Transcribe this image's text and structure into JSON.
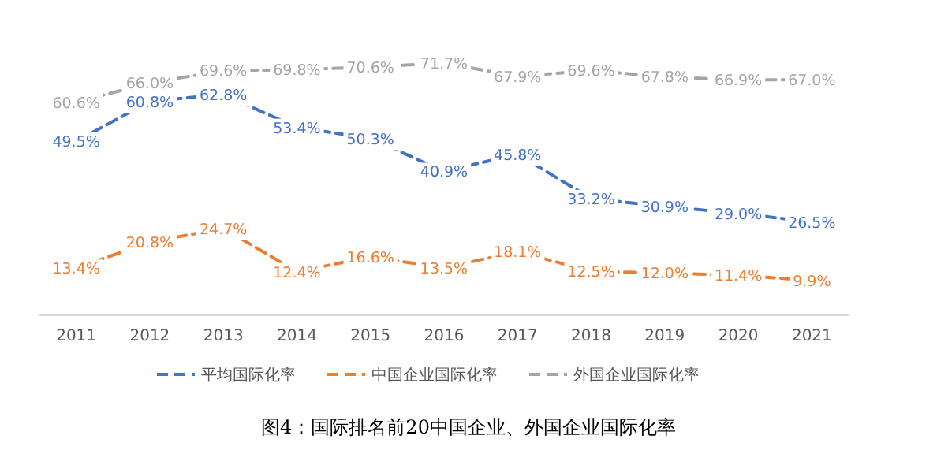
{
  "chart_data": {
    "type": "line",
    "title": "图4：国际排名前20中国企业、外国企业国际化率",
    "categories": [
      "2011",
      "2012",
      "2013",
      "2014",
      "2015",
      "2016",
      "2017",
      "2018",
      "2019",
      "2020",
      "2021"
    ],
    "series": [
      {
        "name": "平均国际化率",
        "color": "#4472c4",
        "values": [
          49.5,
          60.8,
          62.8,
          53.4,
          50.3,
          40.9,
          45.8,
          33.2,
          30.9,
          29.0,
          26.5
        ],
        "value_labels": [
          "49.5%",
          "60.8%",
          "62.8%",
          "53.4%",
          "50.3%",
          "40.9%",
          "45.8%",
          "33.2%",
          "30.9%",
          "29.0%",
          "26.5%"
        ]
      },
      {
        "name": "中国企业国际化率",
        "color": "#ed7d31",
        "values": [
          13.4,
          20.8,
          24.7,
          12.4,
          16.6,
          13.5,
          18.1,
          12.5,
          12.0,
          11.4,
          9.9
        ],
        "value_labels": [
          "13.4%",
          "20.8%",
          "24.7%",
          "12.4%",
          "16.6%",
          "13.5%",
          "18.1%",
          "12.5%",
          "12.0%",
          "11.4%",
          "9.9%"
        ]
      },
      {
        "name": "外国企业国际化率",
        "color": "#a5a5a5",
        "values": [
          60.6,
          66.0,
          69.6,
          69.8,
          70.6,
          71.7,
          67.9,
          69.6,
          67.8,
          66.9,
          67.0
        ],
        "value_labels": [
          "60.6%",
          "66.0%",
          "69.6%",
          "69.8%",
          "70.6%",
          "71.7%",
          "67.9%",
          "69.6%",
          "67.8%",
          "66.9%",
          "67.0%"
        ]
      }
    ],
    "legend": "bottom",
    "line_style": "dashed"
  }
}
